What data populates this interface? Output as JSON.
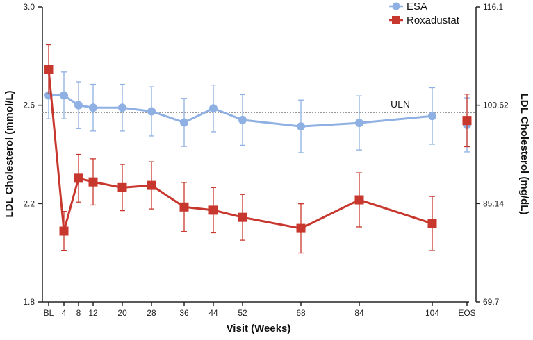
{
  "chart_data": {
    "type": "line",
    "xlabel": "Visit (Weeks)",
    "ylabel": "LDL Cholesterol (mmol/L)",
    "ylabel_right": "LDL Cholesterol (mg/dL)",
    "categories": [
      "BL",
      "4",
      "8",
      "12",
      "20",
      "28",
      "36",
      "44",
      "52",
      "68",
      "84",
      "104",
      "EOS"
    ],
    "ylim": [
      1.8,
      3.0
    ],
    "yticks": [
      "3.0",
      "2.6",
      "2.2",
      "1.8"
    ],
    "ytick_values": [
      3.0,
      2.6,
      2.2,
      1.8
    ],
    "yticks_right": [
      "116.1",
      "100.62",
      "85.14",
      "69.7"
    ],
    "reference_line": {
      "label": "ULN",
      "value": 2.57
    },
    "series": [
      {
        "name": "ESA",
        "color": "#8fb0e3",
        "marker": "circle",
        "values": [
          2.64,
          2.64,
          2.6,
          2.59,
          2.59,
          2.575,
          2.53,
          2.587,
          2.54,
          2.514,
          2.528,
          2.556,
          2.52
        ],
        "errors": [
          0.095,
          0.095,
          0.095,
          0.095,
          0.095,
          0.1,
          0.098,
          0.095,
          0.103,
          0.107,
          0.11,
          0.115,
          0.11
        ]
      },
      {
        "name": "Roxadustat",
        "color": "#c8372d",
        "marker": "square",
        "values": [
          2.746,
          2.088,
          2.303,
          2.288,
          2.265,
          2.274,
          2.186,
          2.173,
          2.144,
          2.099,
          2.215,
          2.119,
          2.538
        ],
        "errors": [
          0.1,
          0.08,
          0.097,
          0.094,
          0.094,
          0.096,
          0.1,
          0.092,
          0.093,
          0.1,
          0.11,
          0.11,
          0.107
        ]
      }
    ]
  }
}
